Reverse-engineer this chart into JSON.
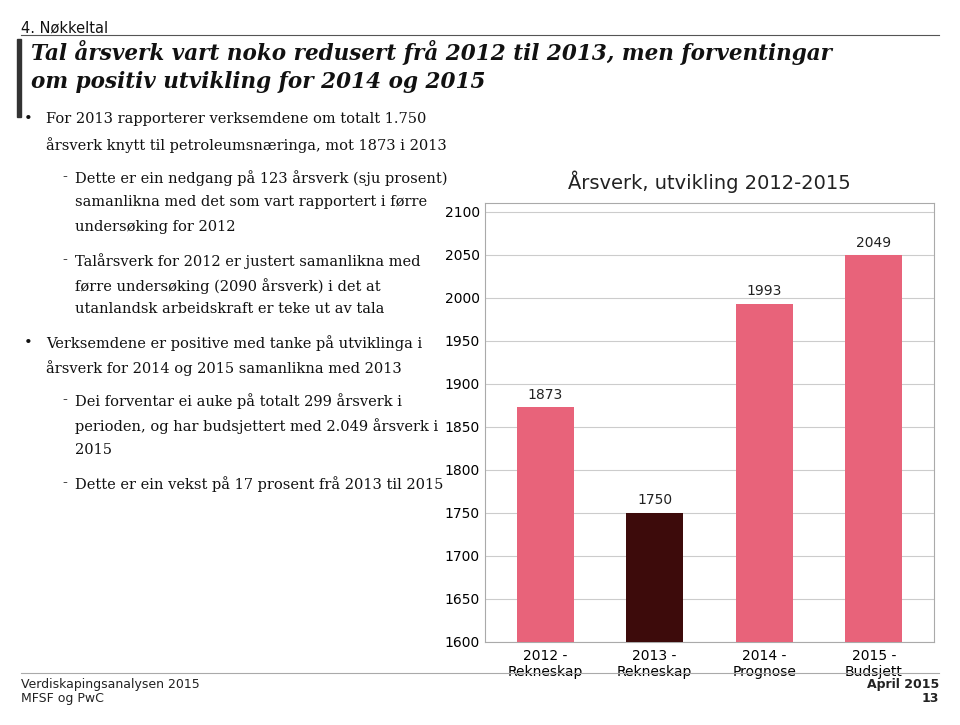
{
  "title": "Årsverk, utvikling 2012-2015",
  "categories": [
    "2012 -\nRekneskap",
    "2013 -\nRekneskap",
    "2014 -\nPrognose",
    "2015 -\nBudsjett"
  ],
  "values": [
    1873,
    1750,
    1993,
    2049
  ],
  "bar_colors": [
    "#E8637A",
    "#3D0B0B",
    "#E8637A",
    "#E8637A"
  ],
  "ylim": [
    1600,
    2110
  ],
  "yticks": [
    1600,
    1650,
    1700,
    1750,
    1800,
    1850,
    1900,
    1950,
    2000,
    2050,
    2100
  ],
  "chart_bg": "#FFFFFF",
  "grid_color": "#CCCCCC",
  "label_fontsize": 10,
  "title_fontsize": 14,
  "value_fontsize": 10,
  "page_title": "4. Nøkkeltal",
  "main_title_line1": "Tal årsverk vart noko redusert frå 2012 til 2013, men forventingar",
  "main_title_line2": "om positiv utvikling for 2014 og 2015",
  "footer_left_1": "Verdiskapingsanalysen 2015",
  "footer_left_2": "MFSF og PwC",
  "footer_right_1": "April 2015",
  "footer_right_2": "13"
}
